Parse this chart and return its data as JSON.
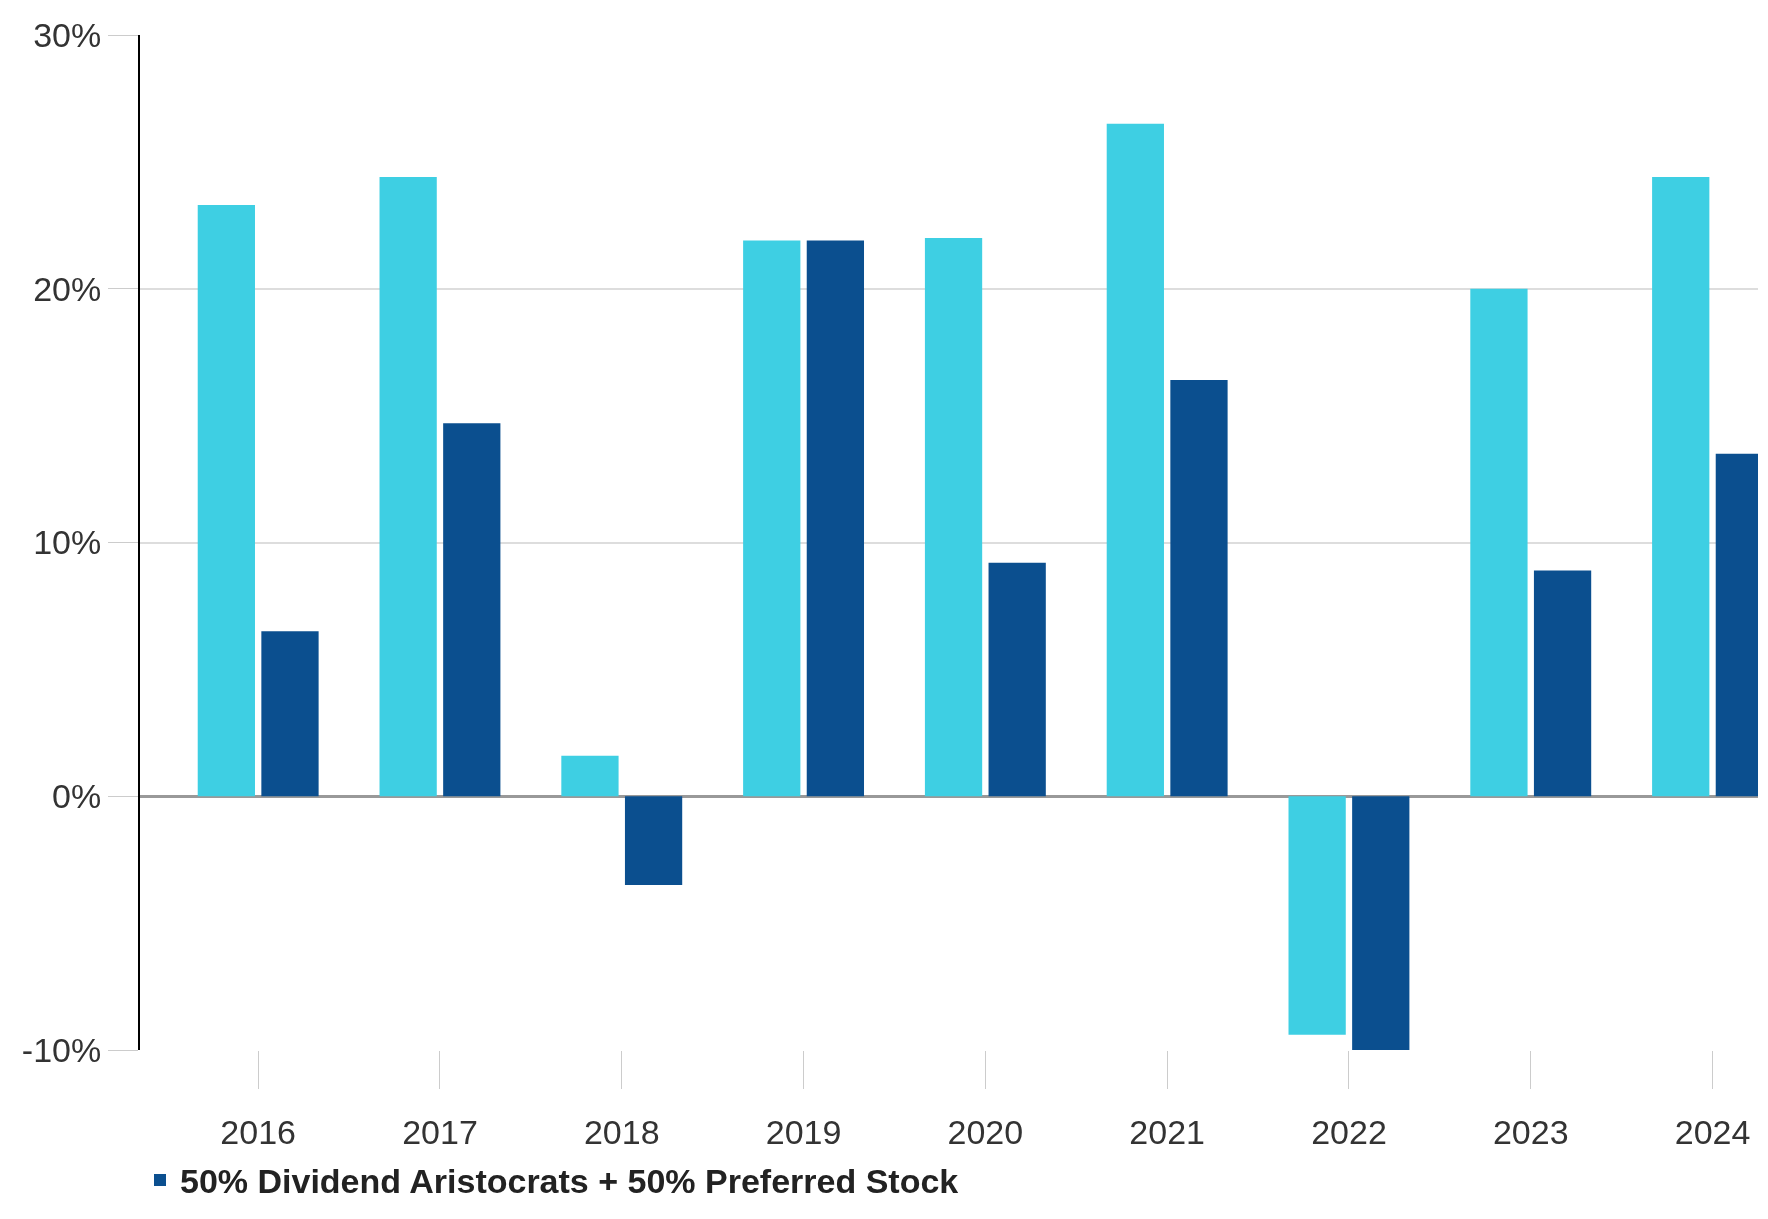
{
  "chart_data": {
    "type": "bar",
    "categories": [
      "2016",
      "2017",
      "2018",
      "2019",
      "2020",
      "2021",
      "2022",
      "2023",
      "2024"
    ],
    "series": [
      {
        "color": "#3ecfe3",
        "values": [
          23.3,
          24.4,
          1.6,
          21.9,
          22.0,
          26.5,
          -9.4,
          20.0,
          24.4
        ]
      },
      {
        "name": "50% Dividend Aristocrats + 50% Preferred Stock",
        "color": "#0b4f8f",
        "values": [
          6.5,
          14.7,
          -3.5,
          21.9,
          9.2,
          16.4,
          -10.0,
          8.9,
          13.5
        ]
      }
    ],
    "ylim": [
      -10,
      30
    ],
    "yticks": [
      {
        "value": -10,
        "label": "-10%"
      },
      {
        "value": 0,
        "label": "0%"
      },
      {
        "value": 10,
        "label": "10%"
      },
      {
        "value": 20,
        "label": "20%"
      },
      {
        "value": 30,
        "label": "30%"
      }
    ],
    "grid": "y",
    "legend": "bottom left"
  }
}
